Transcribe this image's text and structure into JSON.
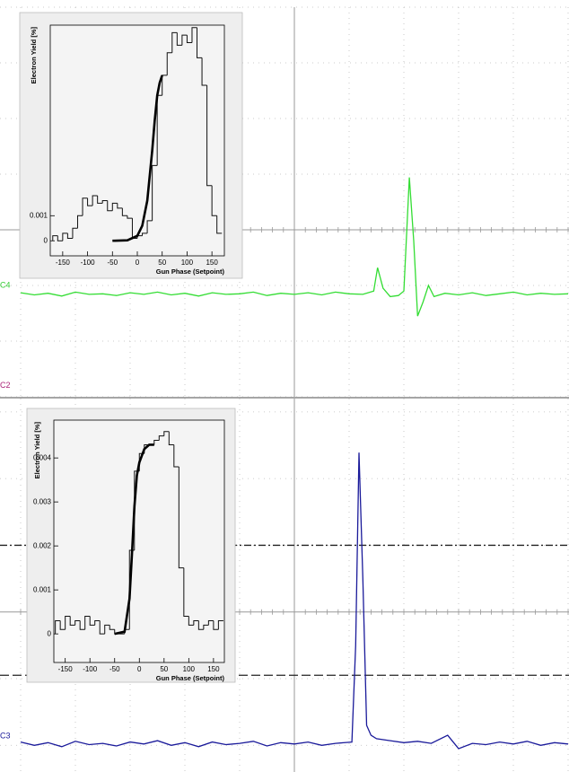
{
  "chart_data": [
    {
      "type": "line",
      "color": "#33dd33",
      "xlim": [
        -5,
        5
      ],
      "ylim": [
        -3,
        4
      ],
      "xticks": [
        -5,
        -4,
        -3,
        -2,
        -1,
        0,
        1,
        2,
        3,
        4,
        5
      ],
      "yticks": [
        -3,
        -2,
        -1,
        0,
        1,
        2,
        3,
        4
      ],
      "x": [
        -5,
        -4.75,
        -4.5,
        -4.25,
        -4,
        -3.75,
        -3.5,
        -3.25,
        -3,
        -2.75,
        -2.5,
        -2.25,
        -2,
        -1.75,
        -1.5,
        -1.25,
        -1,
        -0.75,
        -0.5,
        -0.25,
        0,
        0.25,
        0.5,
        0.75,
        1,
        1.25,
        1.45,
        1.52,
        1.62,
        1.75,
        1.9,
        2.0,
        2.1,
        2.18,
        2.25,
        2.35,
        2.45,
        2.55,
        2.75,
        3,
        3.25,
        3.5,
        3.75,
        4,
        4.25,
        4.5,
        4.75,
        5
      ],
      "values": [
        -1.13,
        -1.17,
        -1.14,
        -1.19,
        -1.12,
        -1.16,
        -1.15,
        -1.18,
        -1.13,
        -1.16,
        -1.12,
        -1.17,
        -1.14,
        -1.19,
        -1.13,
        -1.16,
        -1.15,
        -1.12,
        -1.18,
        -1.14,
        -1.16,
        -1.13,
        -1.17,
        -1.12,
        -1.15,
        -1.16,
        -1.1,
        -0.68,
        -1.05,
        -1.2,
        -1.18,
        -1.1,
        0.94,
        -0.2,
        -1.55,
        -1.3,
        -1.0,
        -1.2,
        -1.14,
        -1.17,
        -1.13,
        -1.18,
        -1.15,
        -1.12,
        -1.17,
        -1.14,
        -1.16,
        -1.15
      ],
      "channel_labels": [
        {
          "text": "C4",
          "color": "#33cc33",
          "level": -1.0
        },
        {
          "text": "C2",
          "color": "#aa2277",
          "level": -2.8
        }
      ]
    },
    {
      "type": "histogram",
      "x_label": "Gun Phase (Setpoint)",
      "y_label": "Electron Yield [%]",
      "xlim": [
        -175,
        175
      ],
      "ylim": [
        -0.0006,
        0.0086
      ],
      "xticks": [
        -150,
        -100,
        -50,
        0,
        50,
        100,
        150
      ],
      "yticks": [
        0,
        0.001
      ],
      "bins": [
        -170,
        -160,
        -150,
        -140,
        -130,
        -120,
        -110,
        -100,
        -90,
        -80,
        -70,
        -60,
        -50,
        -40,
        -30,
        -20,
        -10,
        0,
        10,
        20,
        30,
        40,
        50,
        60,
        70,
        80,
        90,
        100,
        110,
        120,
        130,
        140,
        150,
        160,
        170
      ],
      "values": [
        0.0002,
        0,
        0.0003,
        0.0001,
        0.0005,
        0.001,
        0.0017,
        0.0014,
        0.0018,
        0.0015,
        0.0016,
        0.0012,
        0.0015,
        0.0013,
        0.001,
        0.0009,
        0.0001,
        0.0002,
        0.0003,
        0.0008,
        0.003,
        0.0058,
        0.0066,
        0.0075,
        0.0083,
        0.0078,
        0.0082,
        0.0079,
        0.0085,
        0.0073,
        0.0062,
        0.0022,
        0.001,
        0.0003
      ],
      "fit": {
        "x": [
          -50,
          -20,
          0,
          10,
          20,
          30,
          35,
          40,
          45,
          50
        ],
        "y": [
          0,
          2e-05,
          0.0002,
          0.0006,
          0.0016,
          0.0036,
          0.0048,
          0.0058,
          0.0063,
          0.0066
        ]
      }
    },
    {
      "type": "line",
      "color": "#1a1a9a",
      "xlim": [
        -5,
        5
      ],
      "ylim": [
        -2.4,
        3.2
      ],
      "xticks": [
        -5,
        -4,
        -3,
        -2,
        -1,
        0,
        1,
        2,
        3,
        4,
        5
      ],
      "yticks": [
        -2,
        -1,
        0,
        1,
        2,
        3
      ],
      "x": [
        -5,
        -4.75,
        -4.5,
        -4.25,
        -4,
        -3.75,
        -3.5,
        -3.25,
        -3,
        -2.75,
        -2.5,
        -2.25,
        -2,
        -1.75,
        -1.5,
        -1.25,
        -1,
        -0.75,
        -0.5,
        -0.25,
        0,
        0.25,
        0.5,
        0.75,
        1.05,
        1.12,
        1.18,
        1.25,
        1.32,
        1.4,
        1.5,
        1.75,
        2,
        2.25,
        2.5,
        2.8,
        3,
        3.25,
        3.5,
        3.75,
        4,
        4.25,
        4.5,
        4.75,
        5
      ],
      "values": [
        -1.95,
        -2.0,
        -1.96,
        -2.02,
        -1.94,
        -1.99,
        -1.97,
        -2.01,
        -1.95,
        -1.98,
        -1.93,
        -2.0,
        -1.96,
        -2.02,
        -1.95,
        -1.99,
        -1.97,
        -1.94,
        -2.01,
        -1.96,
        -1.98,
        -1.95,
        -2.0,
        -1.97,
        -1.95,
        -0.5,
        2.39,
        0.5,
        -1.7,
        -1.85,
        -1.9,
        -1.93,
        -1.96,
        -1.94,
        -1.97,
        -1.85,
        -2.05,
        -1.97,
        -1.99,
        -1.95,
        -1.98,
        -1.94,
        -2.0,
        -1.96,
        -1.98
      ],
      "reference_lines": [
        {
          "level": 1.0,
          "style": "dashdot"
        },
        {
          "level": -0.95,
          "style": "dashed"
        }
      ],
      "channel_labels": [
        {
          "text": "C3",
          "color": "#1a1a9a",
          "level": -1.86
        }
      ]
    },
    {
      "type": "histogram",
      "x_label": "Gun Phase (Setpoint)",
      "y_label": "Electron Yield [%]",
      "xlim": [
        -173,
        172
      ],
      "ylim": [
        -0.00065,
        0.00486
      ],
      "xticks": [
        -150,
        -100,
        -50,
        0,
        50,
        100,
        150
      ],
      "yticks": [
        0,
        0.001,
        0.002,
        0.003,
        0.004
      ],
      "bins": [
        -170,
        -160,
        -150,
        -140,
        -130,
        -120,
        -110,
        -100,
        -90,
        -80,
        -70,
        -60,
        -50,
        -40,
        -30,
        -20,
        -10,
        0,
        10,
        20,
        30,
        40,
        50,
        60,
        70,
        80,
        90,
        100,
        110,
        120,
        130,
        140,
        150,
        160,
        170
      ],
      "values": [
        0.0003,
        0.0001,
        0.0004,
        0.0002,
        0.0003,
        0.0001,
        0.0004,
        0.0002,
        0.0003,
        0,
        0.0002,
        0.0001,
        0,
        0,
        0.0001,
        0.0019,
        0.0037,
        0.0041,
        0.0043,
        0.0043,
        0.0044,
        0.0045,
        0.0046,
        0.0043,
        0.0038,
        0.0015,
        0.0004,
        0.0002,
        0.0003,
        0.0001,
        0.0002,
        0.0003,
        0.0001,
        0.0003
      ],
      "fit": {
        "x": [
          -50,
          -30,
          -20,
          -15,
          -10,
          -5,
          0,
          10,
          20,
          30
        ],
        "y": [
          0,
          5e-05,
          0.0008,
          0.0018,
          0.0029,
          0.0036,
          0.0039,
          0.0042,
          0.0043,
          0.0043
        ]
      }
    }
  ]
}
